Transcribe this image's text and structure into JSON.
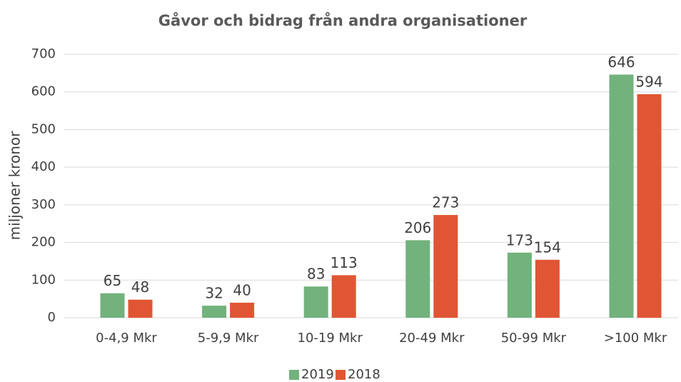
{
  "chart_data": {
    "type": "bar",
    "title": "Gåvor och bidrag från andra organisationer",
    "y_label": "miljoner kronor",
    "categories": [
      "0-4,9 Mkr",
      "5-9,9 Mkr",
      "10-19 Mkr",
      "20-49 Mkr",
      "50-99 Mkr",
      ">100 Mkr"
    ],
    "series": [
      {
        "name": "2019",
        "color": "#72b27c",
        "values": [
          65,
          32,
          83,
          206,
          173,
          646
        ]
      },
      {
        "name": "2018",
        "color": "#e05634",
        "values": [
          48,
          40,
          113,
          273,
          154,
          594
        ]
      }
    ],
    "ylim": [
      0,
      700
    ],
    "yticks": [
      0,
      100,
      200,
      300,
      400,
      500,
      600,
      700
    ],
    "grid": true,
    "legend": "bottom"
  }
}
